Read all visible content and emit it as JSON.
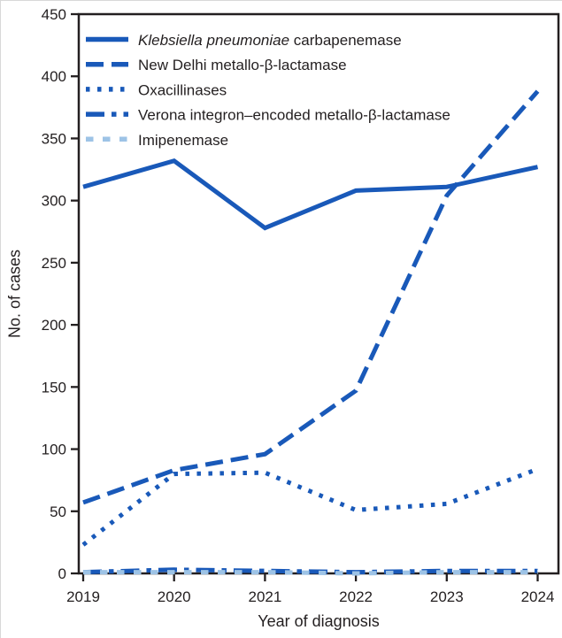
{
  "figure_title": "",
  "axes": {
    "y_label": "No. of cases",
    "x_label": "Year of diagnosis"
  },
  "colors": {
    "line_blue": "#1959b9",
    "light_blue": "#9dc3e6",
    "axis_black": "#231f20",
    "background": "#ffffff"
  },
  "chart_data": {
    "type": "line",
    "title": "",
    "xlabel": "Year of diagnosis",
    "ylabel": "No. of cases",
    "x": [
      2019,
      2020,
      2021,
      2022,
      2023,
      2024
    ],
    "yticks": [
      0,
      50,
      100,
      150,
      200,
      250,
      300,
      350,
      400,
      450
    ],
    "ylim": [
      0,
      450
    ],
    "grid": false,
    "legend_position": "top-left-inside",
    "series": [
      {
        "id": "kpc",
        "name": "Klebsiella pneumoniae carbapenemase",
        "label_parts": [
          {
            "text": "Klebsiella pneumoniae",
            "italic": true
          },
          {
            "text": " carbapenemase",
            "italic": false
          }
        ],
        "style": "solid",
        "color": "#1959b9",
        "values": [
          311,
          332,
          278,
          308,
          311,
          327
        ]
      },
      {
        "id": "ndm",
        "name": "New Delhi metallo-β-lactamase",
        "label_parts": [
          {
            "text": "New Delhi metallo-β-lactamase",
            "italic": false
          }
        ],
        "style": "dashed",
        "color": "#1959b9",
        "values": [
          57,
          83,
          96,
          147,
          304,
          388
        ]
      },
      {
        "id": "oxa",
        "name": "Oxacillinases",
        "label_parts": [
          {
            "text": "Oxacillinases",
            "italic": false
          }
        ],
        "style": "dotted",
        "color": "#1959b9",
        "values": [
          23,
          80,
          81,
          51,
          56,
          84
        ]
      },
      {
        "id": "vim",
        "name": "Verona integron–encoded metallo-β-lactamase",
        "label_parts": [
          {
            "text": "Verona integron–encoded metallo-β-lactamase",
            "italic": false
          }
        ],
        "style": "dash-dot",
        "color": "#1959b9",
        "values": [
          1,
          3,
          2,
          1,
          2,
          2
        ]
      },
      {
        "id": "imp",
        "name": "Imipenemase",
        "label_parts": [
          {
            "text": "Imipenemase",
            "italic": false
          }
        ],
        "style": "dashed-short",
        "color": "#9dc3e6",
        "values": [
          1,
          1,
          1,
          0,
          1,
          1
        ]
      }
    ]
  }
}
